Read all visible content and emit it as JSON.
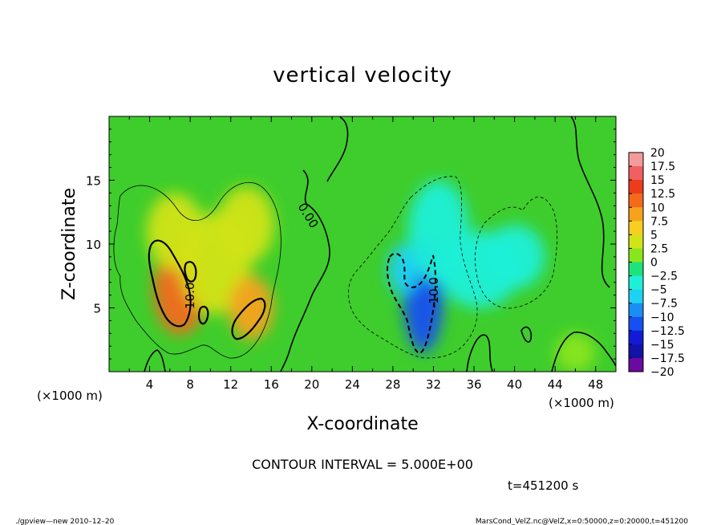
{
  "chart_data": {
    "type": "heatmap",
    "title": "vertical velocity",
    "xlabel": "X-coordinate",
    "ylabel": "Z-coordinate",
    "x_units_label": "(×1000 m)",
    "x_units_label_right": "(×1000 m)",
    "xlim": [
      0,
      50
    ],
    "ylim": [
      0,
      20
    ],
    "x_ticks": [
      4,
      8,
      12,
      16,
      20,
      24,
      28,
      32,
      36,
      40,
      44,
      48
    ],
    "y_ticks": [
      5,
      10,
      15
    ],
    "contour_interval_text": "CONTOUR INTERVAL = 5.000E+00",
    "contour_labels": [
      "0.00",
      "10.0",
      "-10.0"
    ],
    "time_text": "t=451200 s",
    "colorbar": {
      "levels": [
        "20",
        "17.5",
        "15",
        "12.5",
        "10",
        "7.5",
        "5",
        "2.5",
        "0",
        "−2.5",
        "−5",
        "−7.5",
        "−10",
        "−12.5",
        "−15",
        "−17.5",
        "−20"
      ],
      "colors": [
        "#f49a9a",
        "#f06060",
        "#ec3c1c",
        "#f26a1a",
        "#f7a21c",
        "#f6cf20",
        "#d2e418",
        "#8ae61c",
        "#22cc22",
        "#1ee27c",
        "#1ef0d8",
        "#1ed2f2",
        "#1a8ef2",
        "#1650f0",
        "#121ad8",
        "#1212a6",
        "#6a0aa0"
      ]
    },
    "blobs": [
      {
        "x": 7.0,
        "z": 6.5,
        "rx": 2.6,
        "rz": 3.6,
        "v": 13
      },
      {
        "x": 10.5,
        "z": 8.5,
        "rx": 3.5,
        "rz": 4.0,
        "v": 5
      },
      {
        "x": 14.0,
        "z": 5.0,
        "rx": 2.2,
        "rz": 2.5,
        "v": 11
      },
      {
        "x": 6.5,
        "z": 11.0,
        "rx": 2.8,
        "rz": 3.0,
        "v": 6
      },
      {
        "x": 13.5,
        "z": 11.5,
        "rx": 2.8,
        "rz": 3.0,
        "v": 5
      },
      {
        "x": 31.0,
        "z": 6.0,
        "rx": 2.0,
        "rz": 4.5,
        "v": -12
      },
      {
        "x": 29.0,
        "z": 8.0,
        "rx": 1.5,
        "rz": 2.0,
        "v": -8
      },
      {
        "x": 32.5,
        "z": 11.0,
        "rx": 3.0,
        "rz": 4.0,
        "v": -6
      },
      {
        "x": 36.5,
        "z": 8.0,
        "rx": 4.0,
        "rz": 3.0,
        "v": -4
      },
      {
        "x": 40.0,
        "z": 9.0,
        "rx": 3.0,
        "rz": 2.5,
        "v": -4
      },
      {
        "x": 46.0,
        "z": 1.5,
        "rx": 2.0,
        "rz": 1.5,
        "v": 2
      }
    ]
  },
  "footer": {
    "left": "./gpview—new   2010–12–20",
    "right": "MarsCond_VelZ.nc@VelZ,x=0:50000,z=0:20000,t=451200"
  }
}
